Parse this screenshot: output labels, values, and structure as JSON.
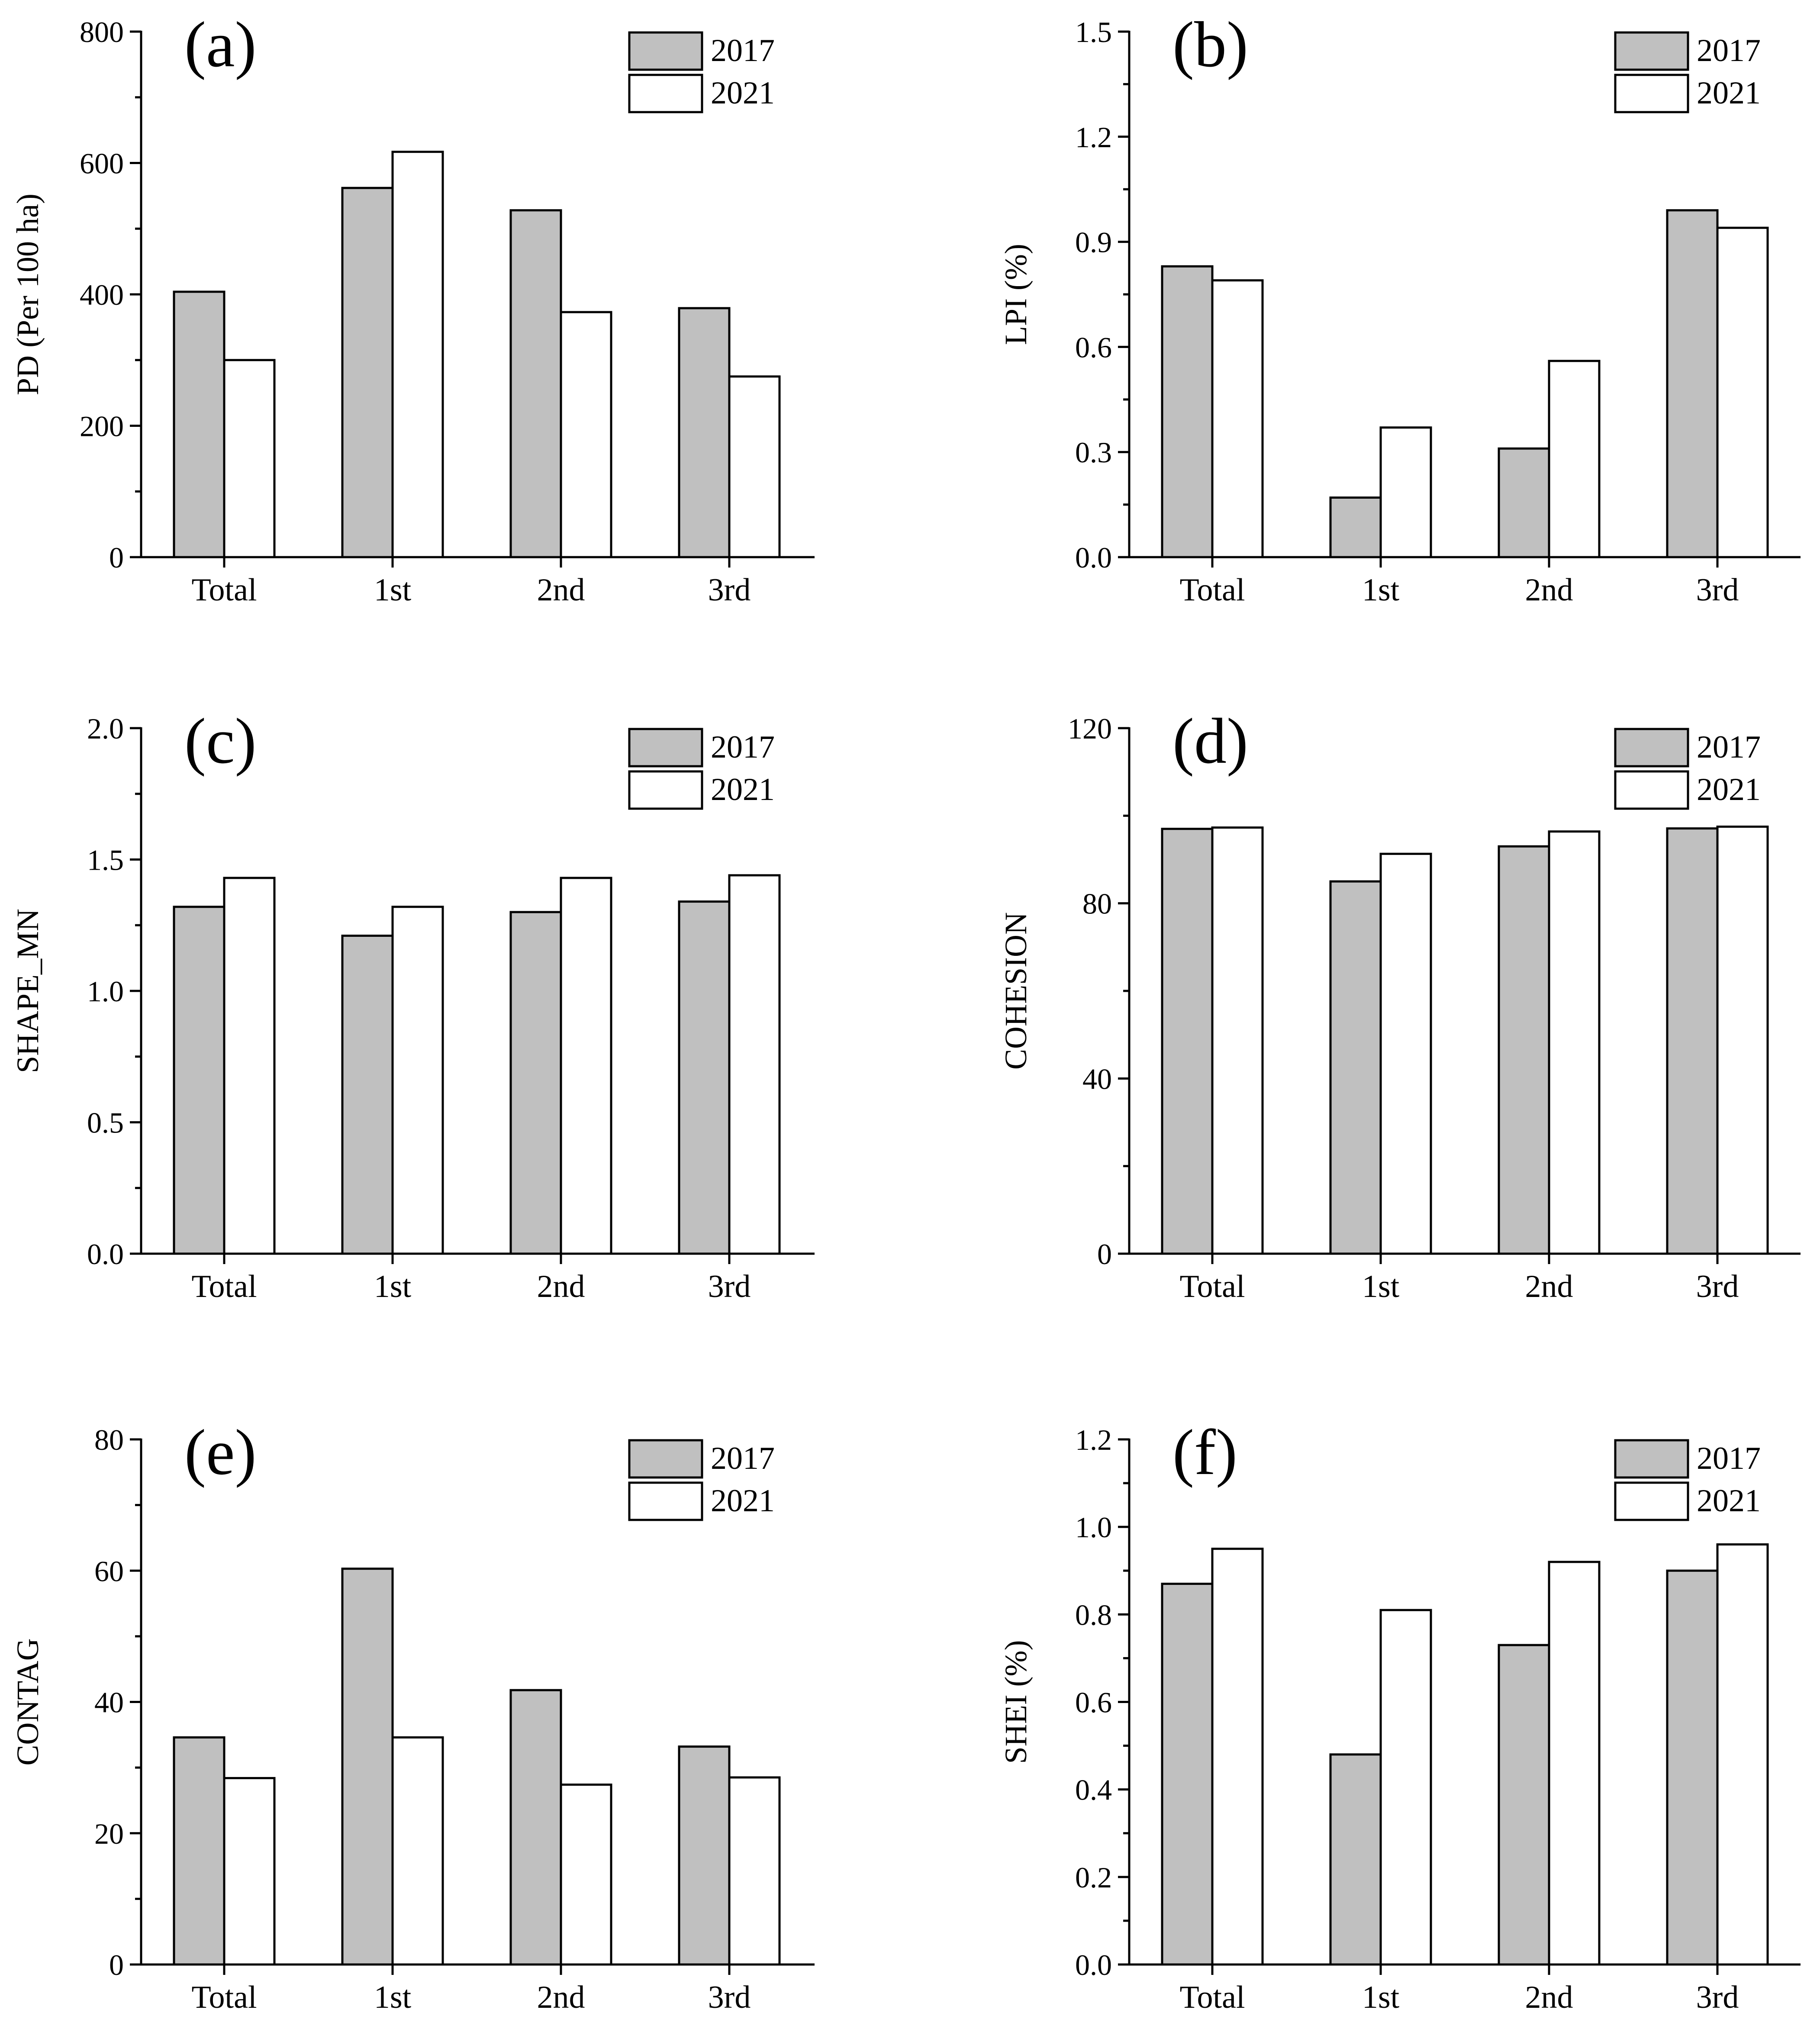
{
  "colors": {
    "series_2017": "#c0c0c0",
    "series_2021": "#ffffff",
    "axis": "#000000"
  },
  "chart_data": [
    {
      "panel_label": "(a)",
      "type": "bar",
      "categories": [
        "Total",
        "1st",
        "2nd",
        "3rd"
      ],
      "ylabel": "PD   (Per 100 ha)",
      "ylim": [
        0,
        800
      ],
      "yticks": [
        0,
        200,
        400,
        600,
        800
      ],
      "ytick_labels": [
        "0",
        "200",
        "400",
        "600",
        "800"
      ],
      "minor_ticks": true,
      "legend": "top-right",
      "series": [
        {
          "name": "2017",
          "values": [
            404,
            562,
            528,
            379
          ]
        },
        {
          "name": "2021",
          "values": [
            300,
            617,
            373,
            275
          ]
        }
      ]
    },
    {
      "panel_label": "(b)",
      "type": "bar",
      "categories": [
        "Total",
        "1st",
        "2nd",
        "3rd"
      ],
      "ylabel": "LPI   (%)",
      "ylim": [
        0,
        1.5
      ],
      "yticks": [
        0,
        0.3,
        0.6,
        0.9,
        1.2,
        1.5
      ],
      "ytick_labels": [
        "0.0",
        "0.3",
        "0.6",
        "0.9",
        "1.2",
        "1.5"
      ],
      "minor_ticks": true,
      "legend": "top-right",
      "series": [
        {
          "name": "2017",
          "values": [
            0.83,
            0.17,
            0.31,
            0.99
          ]
        },
        {
          "name": "2021",
          "values": [
            0.79,
            0.37,
            0.56,
            0.94
          ]
        }
      ]
    },
    {
      "panel_label": "(c)",
      "type": "bar",
      "categories": [
        "Total",
        "1st",
        "2nd",
        "3rd"
      ],
      "ylabel": "SHAPE_MN",
      "ylim": [
        0,
        2.0
      ],
      "yticks": [
        0,
        0.5,
        1.0,
        1.5,
        2.0
      ],
      "ytick_labels": [
        "0.0",
        "0.5",
        "1.0",
        "1.5",
        "2.0"
      ],
      "minor_ticks": true,
      "legend": "top-right",
      "series": [
        {
          "name": "2017",
          "values": [
            1.32,
            1.21,
            1.3,
            1.34
          ]
        },
        {
          "name": "2021",
          "values": [
            1.43,
            1.32,
            1.43,
            1.44
          ]
        }
      ]
    },
    {
      "panel_label": "(d)",
      "type": "bar",
      "categories": [
        "Total",
        "1st",
        "2nd",
        "3rd"
      ],
      "ylabel": "COHESION",
      "ylim": [
        0,
        120
      ],
      "yticks": [
        0,
        40,
        80,
        120
      ],
      "ytick_labels": [
        "0",
        "40",
        "80",
        "120"
      ],
      "minor_ticks": true,
      "legend": "top-right",
      "series": [
        {
          "name": "2017",
          "values": [
            97.0,
            85.0,
            93.0,
            97.1
          ]
        },
        {
          "name": "2021",
          "values": [
            97.3,
            91.3,
            96.4,
            97.5
          ]
        }
      ]
    },
    {
      "panel_label": "(e)",
      "type": "bar",
      "categories": [
        "Total",
        "1st",
        "2nd",
        "3rd"
      ],
      "ylabel": "CONTAG",
      "ylim": [
        0,
        80
      ],
      "yticks": [
        0,
        20,
        40,
        60,
        80
      ],
      "ytick_labels": [
        "0",
        "20",
        "40",
        "60",
        "80"
      ],
      "minor_ticks": true,
      "legend": "top-right",
      "series": [
        {
          "name": "2017",
          "values": [
            34.6,
            60.3,
            41.8,
            33.2
          ]
        },
        {
          "name": "2021",
          "values": [
            28.4,
            34.6,
            27.4,
            28.5
          ]
        }
      ]
    },
    {
      "panel_label": "(f)",
      "type": "bar",
      "categories": [
        "Total",
        "1st",
        "2nd",
        "3rd"
      ],
      "ylabel": "SHEI   (%)",
      "ylim": [
        0,
        1.2
      ],
      "yticks": [
        0,
        0.2,
        0.4,
        0.6,
        0.8,
        1.0,
        1.2
      ],
      "ytick_labels": [
        "0.0",
        "0.2",
        "0.4",
        "0.6",
        "0.8",
        "1.0",
        "1.2"
      ],
      "minor_ticks": true,
      "legend": "top-right",
      "series": [
        {
          "name": "2017",
          "values": [
            0.87,
            0.48,
            0.73,
            0.9
          ]
        },
        {
          "name": "2021",
          "values": [
            0.95,
            0.81,
            0.92,
            0.96
          ]
        }
      ]
    }
  ]
}
